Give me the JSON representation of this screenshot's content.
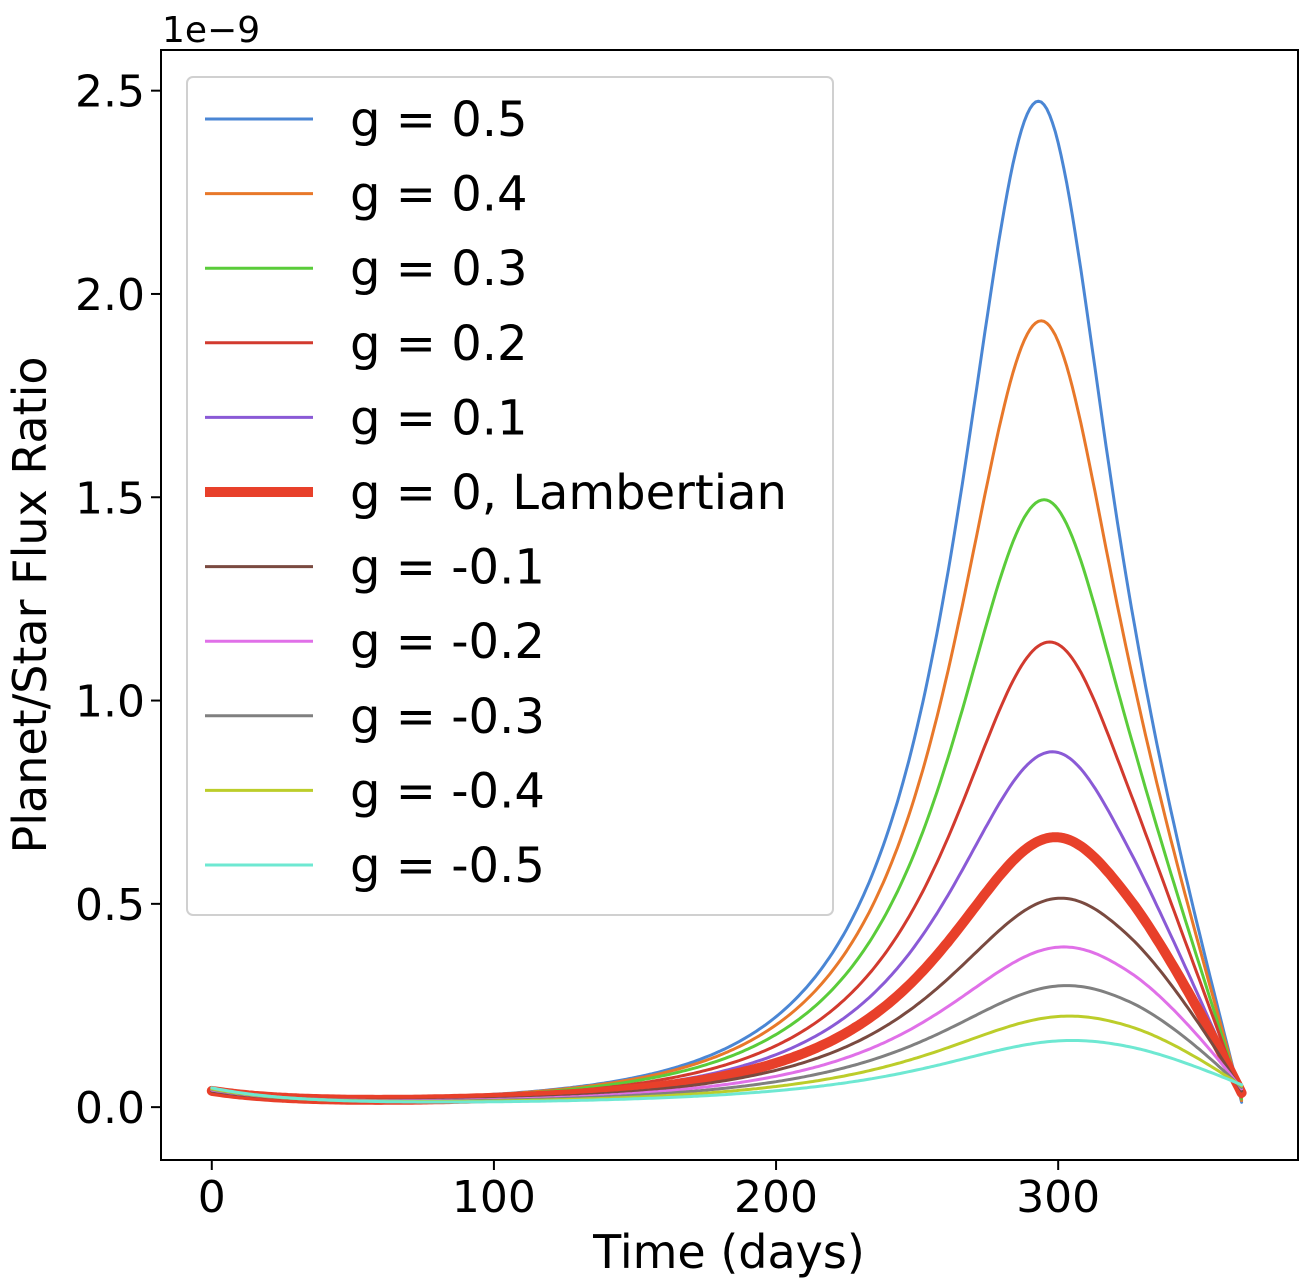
{
  "chart_data": {
    "type": "line",
    "title": "",
    "xlabel": "Time (days)",
    "ylabel": "Planet/Star Flux Ratio",
    "y_offset_label": "1e−9",
    "xlim": [
      -18,
      385
    ],
    "ylim": [
      -0.13,
      2.6
    ],
    "xticks": [
      0,
      100,
      200,
      300
    ],
    "xtick_labels": [
      "0",
      "100",
      "200",
      "300"
    ],
    "yticks": [
      0.0,
      0.5,
      1.0,
      1.5,
      2.0,
      2.5
    ],
    "ytick_labels": [
      "0.0",
      "0.5",
      "1.0",
      "1.5",
      "2.0",
      "2.5"
    ],
    "grid": false,
    "legend_position": "upper-left",
    "x_range": [
      0,
      365
    ],
    "series": [
      {
        "name": "g = 0.5",
        "color": "#4a86d4",
        "stroke": "thin",
        "peak_x": 293,
        "peak_y": 2.47,
        "start_y": 0.03,
        "end_y": 0.012,
        "rise_scale": 26,
        "fall_scale": 25
      },
      {
        "name": "g = 0.4",
        "color": "#e8782a",
        "stroke": "thin",
        "peak_x": 294,
        "peak_y": 1.93,
        "start_y": 0.03,
        "end_y": 0.016,
        "rise_scale": 28,
        "fall_scale": 27
      },
      {
        "name": "g = 0.3",
        "color": "#5acc3a",
        "stroke": "thin",
        "peak_x": 295,
        "peak_y": 1.49,
        "start_y": 0.03,
        "end_y": 0.02,
        "rise_scale": 30,
        "fall_scale": 29
      },
      {
        "name": "g = 0.2",
        "color": "#d23a2e",
        "stroke": "thin",
        "peak_x": 297,
        "peak_y": 1.14,
        "start_y": 0.03,
        "end_y": 0.025,
        "rise_scale": 32,
        "fall_scale": 31
      },
      {
        "name": "g = 0.1",
        "color": "#8a5ad6",
        "stroke": "thin",
        "peak_x": 298,
        "peak_y": 0.87,
        "start_y": 0.03,
        "end_y": 0.03,
        "rise_scale": 34,
        "fall_scale": 33
      },
      {
        "name": "g = 0, Lambertian",
        "color": "#e8402a",
        "stroke": "thick",
        "peak_x": 299,
        "peak_y": 0.66,
        "start_y": 0.035,
        "end_y": 0.035,
        "rise_scale": 36,
        "fall_scale": 36
      },
      {
        "name": "g = -0.1",
        "color": "#7a4a40",
        "stroke": "thin",
        "peak_x": 301,
        "peak_y": 0.51,
        "start_y": 0.035,
        "end_y": 0.04,
        "rise_scale": 38,
        "fall_scale": 38
      },
      {
        "name": "g = -0.2",
        "color": "#e070e8",
        "stroke": "thin",
        "peak_x": 302,
        "peak_y": 0.39,
        "start_y": 0.038,
        "end_y": 0.045,
        "rise_scale": 40,
        "fall_scale": 40
      },
      {
        "name": "g = -0.3",
        "color": "#808080",
        "stroke": "thin",
        "peak_x": 303,
        "peak_y": 0.295,
        "start_y": 0.04,
        "end_y": 0.048,
        "rise_scale": 42,
        "fall_scale": 42
      },
      {
        "name": "g = -0.4",
        "color": "#bccd2a",
        "stroke": "thin",
        "peak_x": 304,
        "peak_y": 0.22,
        "start_y": 0.042,
        "end_y": 0.052,
        "rise_scale": 44,
        "fall_scale": 44
      },
      {
        "name": "g = -0.5",
        "color": "#6ee8d2",
        "stroke": "thin",
        "peak_x": 305,
        "peak_y": 0.16,
        "start_y": 0.045,
        "end_y": 0.055,
        "rise_scale": 46,
        "fall_scale": 46
      }
    ]
  }
}
